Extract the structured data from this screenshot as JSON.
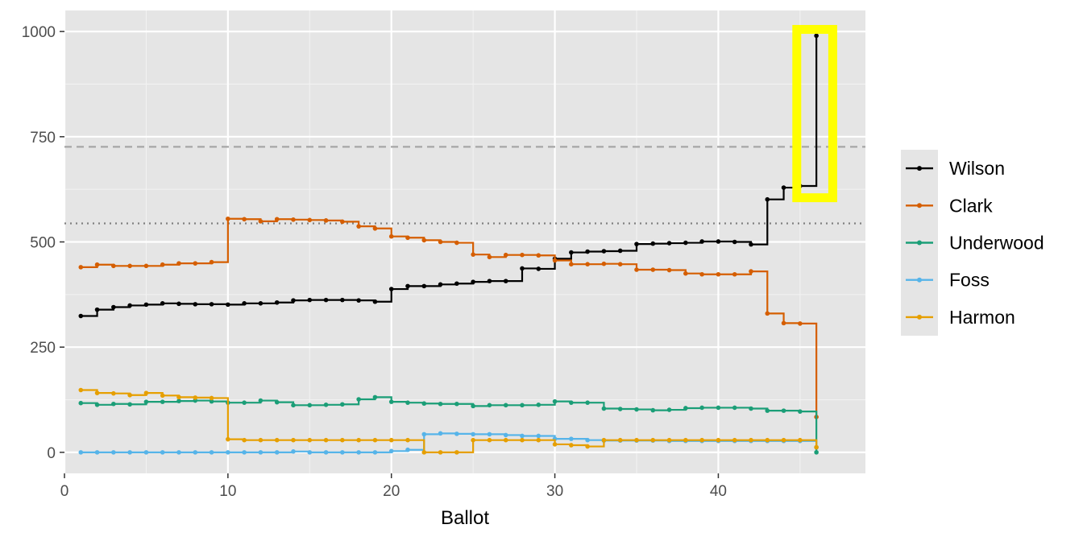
{
  "chart_data": {
    "type": "line",
    "step": true,
    "xlabel": "Ballot",
    "ylabel": "",
    "xlim": [
      0,
      49
    ],
    "ylim": [
      -50,
      1050
    ],
    "x_ticks": [
      0,
      10,
      20,
      30,
      40
    ],
    "y_ticks": [
      0,
      250,
      500,
      750,
      1000
    ],
    "grid": true,
    "legend_position": "right",
    "reference_lines": [
      {
        "y": 726,
        "style": "dashed",
        "color": "#a6a6a6"
      },
      {
        "y": 544,
        "style": "dotted",
        "color": "#808080"
      }
    ],
    "highlight_box": {
      "x": [
        44.8,
        47.0
      ],
      "y": [
        605,
        1005
      ],
      "color": "#ffff00"
    },
    "x": [
      1,
      2,
      3,
      4,
      5,
      6,
      7,
      8,
      9,
      10,
      11,
      12,
      13,
      14,
      15,
      16,
      17,
      18,
      19,
      20,
      21,
      22,
      23,
      24,
      25,
      26,
      27,
      28,
      29,
      30,
      31,
      32,
      33,
      34,
      35,
      36,
      37,
      38,
      39,
      40,
      41,
      42,
      43,
      44,
      45,
      46
    ],
    "series": [
      {
        "name": "Wilson",
        "color": "#000000",
        "values": [
          324,
          339,
          345,
          349,
          351,
          354,
          353,
          352,
          352,
          351,
          354,
          354,
          356,
          361,
          362,
          362,
          362,
          361,
          358,
          388,
          395,
          395,
          399,
          401,
          405,
          407,
          407,
          437,
          436,
          460,
          475,
          477,
          478,
          479,
          495,
          496,
          497,
          498,
          501,
          501,
          500,
          494,
          601,
          629,
          633,
          990
        ]
      },
      {
        "name": "Clark",
        "color": "#d55e00",
        "values": [
          440,
          446,
          443,
          443,
          443,
          446,
          449,
          449,
          452,
          555,
          554,
          549,
          554,
          553,
          552,
          551,
          548,
          537,
          532,
          513,
          510,
          504,
          500,
          498,
          470,
          464,
          469,
          469,
          468,
          456,
          447,
          447,
          448,
          447,
          434,
          434,
          433,
          425,
          423,
          423,
          423,
          430,
          330,
          307,
          306,
          84
        ]
      },
      {
        "name": "Underwood",
        "color": "#1b9e77",
        "values": [
          117,
          113,
          115,
          114,
          120,
          120,
          122,
          123,
          121,
          118,
          118,
          123,
          119,
          112,
          112,
          113,
          114,
          126,
          131,
          120,
          118,
          116,
          115,
          115,
          110,
          112,
          112,
          112,
          113,
          121,
          118,
          118,
          104,
          103,
          102,
          100,
          101,
          105,
          106,
          106,
          106,
          104,
          99,
          99,
          97,
          0
        ]
      },
      {
        "name": "Foss",
        "color": "#56b4e9",
        "values": [
          0,
          0,
          0,
          0,
          0,
          0,
          0,
          0,
          0,
          0,
          0,
          0,
          0,
          2,
          0,
          0,
          0,
          0,
          0,
          3,
          6,
          43,
          45,
          44,
          43,
          43,
          41,
          39,
          39,
          32,
          32,
          29,
          28,
          28,
          28,
          28,
          27,
          27,
          27,
          27,
          27,
          27,
          27,
          27,
          27,
          12
        ]
      },
      {
        "name": "Harmon",
        "color": "#e69f00",
        "values": [
          148,
          141,
          140,
          136,
          141,
          135,
          131,
          130,
          129,
          31,
          29,
          29,
          29,
          29,
          29,
          29,
          29,
          29,
          29,
          29,
          29,
          0,
          0,
          0,
          29,
          29,
          29,
          29,
          29,
          19,
          17,
          14,
          29,
          29,
          29,
          29,
          29,
          29,
          29,
          29,
          29,
          29,
          29,
          29,
          29,
          12
        ]
      }
    ]
  }
}
